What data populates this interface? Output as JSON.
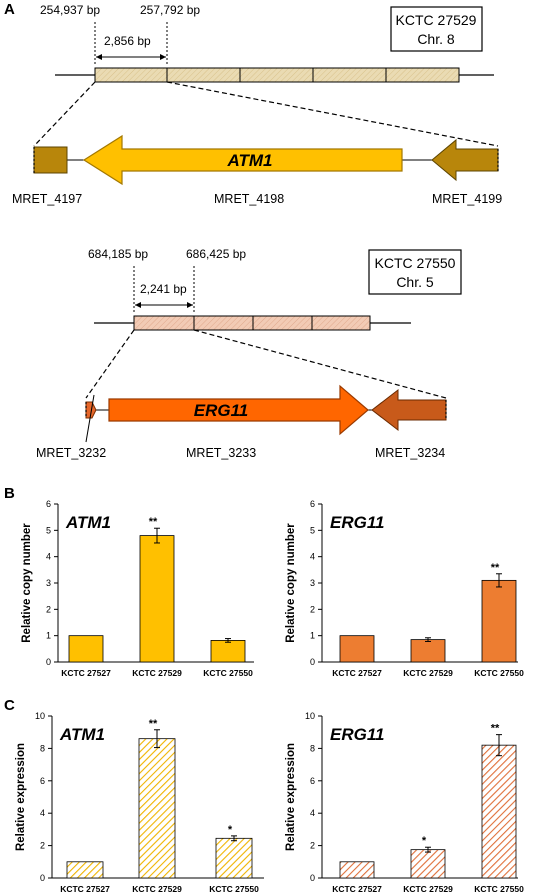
{
  "panels": {
    "a": "A",
    "b": "B",
    "c": "C"
  },
  "colors": {
    "atm1_body": "#FFC000",
    "atm1_body_stroke": "#A37800",
    "atm1_flank": "#B8860B",
    "erg11_body": "#FF6600",
    "erg11_flank": "#C85A1A",
    "erg11_small": "#E5662A",
    "region1_fill": "#EADBB3",
    "region2_fill": "#F2CBB5",
    "bar_atm1": "#FFC000",
    "bar_erg11": "#ED7D31"
  },
  "locus1": {
    "strain": "KCTC 27529",
    "chrom": "Chr. 8",
    "start": "254,937 bp",
    "end": "257,792 bp",
    "length": "2,856 bp",
    "gene_main": "ATM1",
    "gene_left": "MRET_4197",
    "gene_mid": "MRET_4198",
    "gene_right": "MRET_4199"
  },
  "locus2": {
    "strain": "KCTC 27550",
    "chrom": "Chr. 5",
    "start": "684,185 bp",
    "end": "686,425 bp",
    "length": "2,241 bp",
    "gene_main": "ERG11",
    "gene_left": "MRET_3232",
    "gene_mid": "MRET_3233",
    "gene_right": "MRET_3234"
  },
  "chart_data": [
    {
      "type": "bar",
      "panel": "B",
      "title": "ATM1",
      "ylabel": "Relative copy number",
      "categories": [
        "KCTC 27527",
        "KCTC 27529",
        "KCTC 27550"
      ],
      "values": [
        1.0,
        4.8,
        0.82
      ],
      "errors": [
        0,
        0.28,
        0.07
      ],
      "significance": [
        "",
        "**",
        ""
      ],
      "ylim": [
        0,
        6
      ],
      "yticks": [
        0,
        1,
        2,
        3,
        4,
        5,
        6
      ],
      "fill": "solid",
      "color": "#FFC000"
    },
    {
      "type": "bar",
      "panel": "B",
      "title": "ERG11",
      "ylabel": "Relative copy number",
      "categories": [
        "KCTC 27527",
        "KCTC 27529",
        "KCTC 27550"
      ],
      "values": [
        1.0,
        0.85,
        3.1
      ],
      "errors": [
        0,
        0.07,
        0.25
      ],
      "significance": [
        "",
        "",
        "**"
      ],
      "ylim": [
        0,
        6
      ],
      "yticks": [
        0,
        1,
        2,
        3,
        4,
        5,
        6
      ],
      "fill": "solid",
      "color": "#ED7D31"
    },
    {
      "type": "bar",
      "panel": "C",
      "title": "ATM1",
      "ylabel": "Relative expression",
      "categories": [
        "KCTC 27527",
        "KCTC 27529",
        "KCTC 27550"
      ],
      "values": [
        1.0,
        8.6,
        2.45
      ],
      "errors": [
        0,
        0.55,
        0.15
      ],
      "significance": [
        "",
        "**",
        "*"
      ],
      "ylim": [
        0,
        10
      ],
      "yticks": [
        0,
        2,
        4,
        6,
        8,
        10
      ],
      "fill": "hatched",
      "color": "#FFC000"
    },
    {
      "type": "bar",
      "panel": "C",
      "title": "ERG11",
      "ylabel": "Relative expression",
      "categories": [
        "KCTC 27527",
        "KCTC 27529",
        "KCTC 27550"
      ],
      "values": [
        1.0,
        1.75,
        8.2
      ],
      "errors": [
        0,
        0.15,
        0.65
      ],
      "significance": [
        "",
        "*",
        "**"
      ],
      "ylim": [
        0,
        10
      ],
      "yticks": [
        0,
        2,
        4,
        6,
        8,
        10
      ],
      "fill": "hatched",
      "color": "#ED7D31"
    }
  ]
}
